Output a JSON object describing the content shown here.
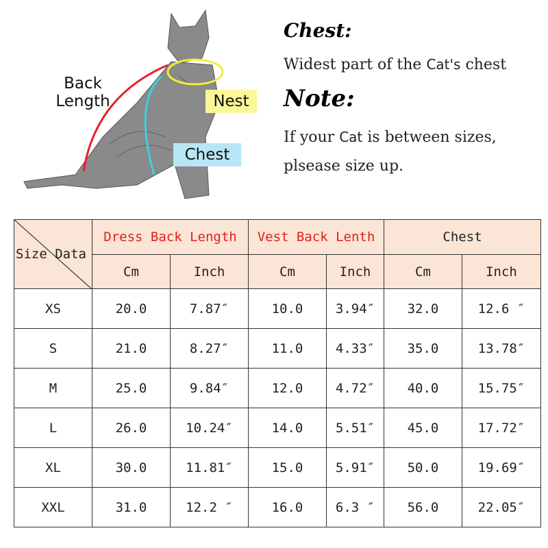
{
  "illustration": {
    "back_length_label": [
      "Back",
      "Length"
    ],
    "nest_label": "Nest",
    "chest_label": "Chest",
    "colors": {
      "back_length_line": "#e8202a",
      "nest_line": "#f2ee3a",
      "nest_box": "#fbf797",
      "chest_line": "#3fd0e0",
      "chest_box": "#b7e6f5"
    }
  },
  "notes": {
    "chest_heading": "Chest:",
    "chest_text_pre": "Widest part of the",
    "chest_text_cat": "Cat's",
    "chest_text_post": "chest",
    "note_heading": "Note:",
    "note_line1_pre": "If your",
    "note_line1_cat": "Cat",
    "note_line1_post": "is between sizes,",
    "note_line2": "plsease size up."
  },
  "table": {
    "corner_label": "Size Data",
    "groups": [
      {
        "label": "Dress Back Length",
        "color": "#e0201b"
      },
      {
        "label": "Vest Back Lenth",
        "color": "#e0201b"
      },
      {
        "label": "Chest",
        "color": "#222222"
      }
    ],
    "subheaders": [
      "Cm",
      "Inch",
      "Cm",
      "Inch",
      "Cm",
      "Inch"
    ],
    "header_bg": "#fbe5d6",
    "rows": [
      [
        "XS",
        "20.0",
        "7.87″",
        "10.0",
        "3.94″",
        "32.0",
        "12.6 ″"
      ],
      [
        "S",
        "21.0",
        "8.27″",
        "11.0",
        "4.33″",
        "35.0",
        "13.78″"
      ],
      [
        "M",
        "25.0",
        "9.84″",
        "12.0",
        "4.72″",
        "40.0",
        "15.75″"
      ],
      [
        "L",
        "26.0",
        "10.24″",
        "14.0",
        "5.51″",
        "45.0",
        "17.72″"
      ],
      [
        "XL",
        "30.0",
        "11.81″",
        "15.0",
        "5.91″",
        "50.0",
        "19.69″"
      ],
      [
        "XXL",
        "31.0",
        "12.2 ″",
        "16.0",
        "6.3 ″",
        "56.0",
        "22.05″"
      ]
    ]
  }
}
